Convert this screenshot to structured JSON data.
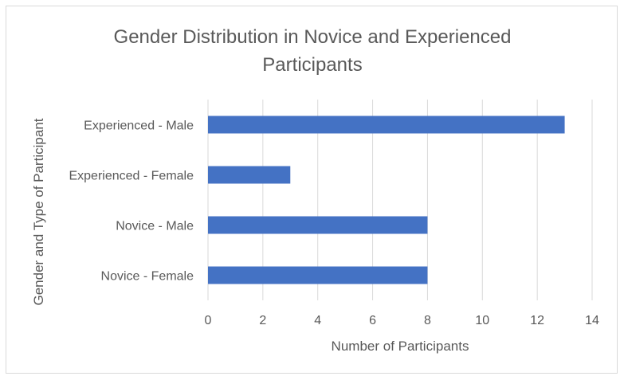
{
  "chart_data": {
    "type": "bar",
    "orientation": "horizontal",
    "title_lines": [
      "Gender Distribution in Novice and Experienced",
      "Participants"
    ],
    "xlabel": "Number of Participants",
    "ylabel": "Gender and Type of Participant",
    "categories": [
      "Experienced - Male",
      "Experienced - Female",
      "Novice - Male",
      "Novice - Female"
    ],
    "values": [
      13,
      3,
      8,
      8
    ],
    "xlim": [
      0,
      14
    ],
    "xticks": [
      0,
      2,
      4,
      6,
      8,
      10,
      12,
      14
    ],
    "grid": "vertical",
    "legend": "none",
    "bar_color": "#4472c4",
    "grid_color": "#d9d9d9"
  }
}
